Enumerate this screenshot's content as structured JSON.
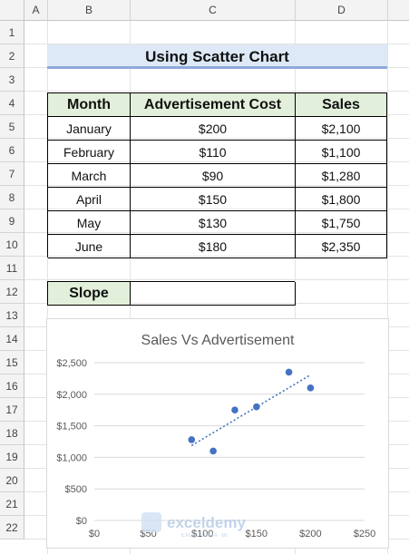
{
  "columns": [
    "A",
    "B",
    "C",
    "D"
  ],
  "rows": [
    "1",
    "2",
    "3",
    "4",
    "5",
    "6",
    "7",
    "8",
    "9",
    "10",
    "11",
    "12",
    "13",
    "14",
    "15",
    "16",
    "17",
    "18",
    "19",
    "20",
    "21",
    "22"
  ],
  "sheet_title": "Using Scatter Chart",
  "table": {
    "headers": [
      "Month",
      "Advertisement Cost",
      "Sales"
    ],
    "rows": [
      [
        "January",
        "$200",
        "$2,100"
      ],
      [
        "February",
        "$110",
        "$1,100"
      ],
      [
        "March",
        "$90",
        "$1,280"
      ],
      [
        "April",
        "$150",
        "$1,800"
      ],
      [
        "May",
        "$130",
        "$1,750"
      ],
      [
        "June",
        "$180",
        "$2,350"
      ]
    ]
  },
  "slope": {
    "label": "Slope",
    "value": ""
  },
  "watermark": "exceldemy",
  "watermark_sub": "EXCEL · DATA · BI",
  "colors": {
    "header_fill": "#e2efda",
    "title_fill": "#dde9f6",
    "title_border": "#8eaadb",
    "marker": "#4472c4"
  },
  "chart_data": {
    "type": "scatter",
    "title": "Sales Vs Advertisement",
    "xlabel": "",
    "ylabel": "",
    "x": [
      200,
      110,
      90,
      150,
      130,
      180
    ],
    "y": [
      2100,
      1100,
      1280,
      1800,
      1750,
      2350
    ],
    "xlim": [
      0,
      250
    ],
    "ylim": [
      0,
      2500
    ],
    "x_ticks": [
      "$0",
      "$50",
      "$100",
      "$150",
      "$200",
      "$250"
    ],
    "y_ticks": [
      "$0",
      "$500",
      "$1,000",
      "$1,500",
      "$2,000",
      "$2,500"
    ],
    "trendline": "linear (dotted)",
    "grid": "horizontal",
    "legend": "none"
  }
}
